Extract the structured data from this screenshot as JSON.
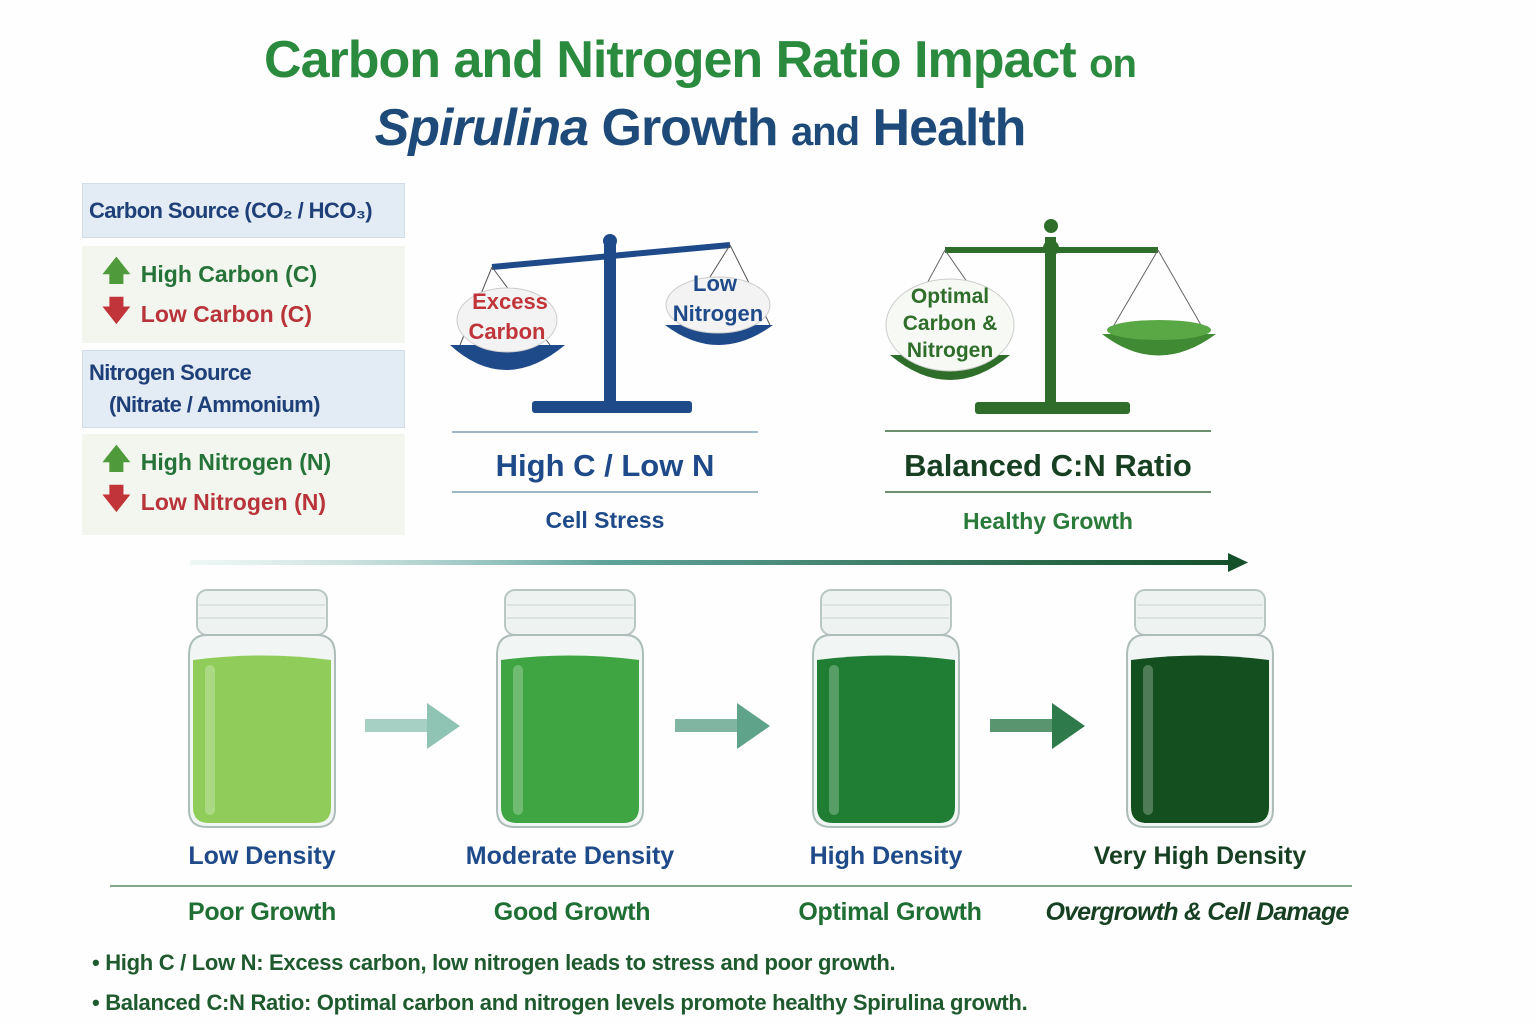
{
  "title": {
    "line1_main": "Carbon and Nitrogen Ratio Impact",
    "line1_small": "on",
    "line2_italic": "Spirulina",
    "line2_main": "Growth",
    "line2_small": "and",
    "line2_end": "Health"
  },
  "sidebar": {
    "carbon_header": "Carbon Source (CO₂ / HCO₃)",
    "high_carbon": "High Carbon (C)",
    "low_carbon": "Low Carbon (C)",
    "nitrogen_header_1": "Nitrogen Source",
    "nitrogen_header_2": "(Nitrate / Ammonium)",
    "high_nitrogen": "High Nitrogen (N)",
    "low_nitrogen": "Low Nitrogen (N)"
  },
  "scales": [
    {
      "left_pan": [
        "Excess",
        "Carbon"
      ],
      "right_pan": [
        "Low",
        "Nitrogen"
      ],
      "title": "High C / Low N",
      "subtitle": "Cell Stress",
      "color": "#1f4a8a"
    },
    {
      "left_pan": [
        "Optimal",
        "Carbon &",
        "Nitrogen"
      ],
      "title": "Balanced C:N Ratio",
      "subtitle": "Healthy Growth",
      "color": "#2f6e2a"
    }
  ],
  "jars": [
    {
      "density": "Low Density",
      "growth": "Poor Growth",
      "liquid": "#8fcc5a"
    },
    {
      "density": "Moderate Density",
      "growth": "Good Growth",
      "liquid": "#3ea542"
    },
    {
      "density": "High Density",
      "growth": "Optimal Growth",
      "liquid": "#1f7e34"
    },
    {
      "density": "Very High Density",
      "growth": "Overgrowth & Cell Damage",
      "liquid": "#14501f"
    }
  ],
  "notes": [
    "• High C / Low N: Excess carbon, low nitrogen leads to stress and poor growth.",
    "• Balanced C:N Ratio: Optimal carbon and nitrogen levels promote healthy Spirulina growth."
  ]
}
